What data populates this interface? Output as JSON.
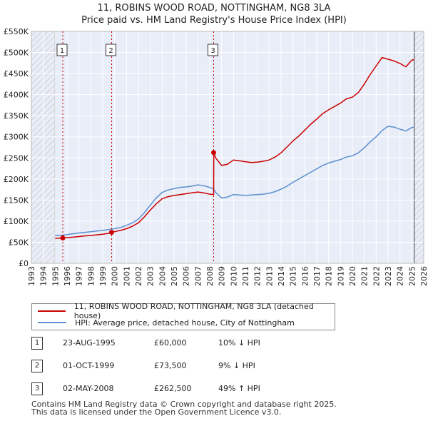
{
  "title_line1": "11, ROBINS WOOD ROAD, NOTTINGHAM, NG8 3LA",
  "title_line2": "Price paid vs. HM Land Registry's House Price Index (HPI)",
  "colors": {
    "price": "#cc0000",
    "hpi": "#5b8fd0",
    "shade": "#e8edf8",
    "hatch": "#c8c8c8",
    "grid": "#ffffff",
    "marker_line": "#cc0000"
  },
  "legend": {
    "price_label": "11, ROBINS WOOD ROAD, NOTTINGHAM, NG8 3LA (detached house)",
    "hpi_label": "HPI: Average price, detached house, City of Nottingham"
  },
  "transactions": [
    {
      "num": "1",
      "date": "23-AUG-1995",
      "price": "£60,000",
      "hpi": "10% ↓ HPI"
    },
    {
      "num": "2",
      "date": "01-OCT-1999",
      "price": "£73,500",
      "hpi": "9% ↓ HPI"
    },
    {
      "num": "3",
      "date": "02-MAY-2008",
      "price": "£262,500",
      "hpi": "49% ↑ HPI"
    }
  ],
  "footer_line1": "Contains HM Land Registry data © Crown copyright and database right 2025.",
  "footer_line2": "This data is licensed under the Open Government Licence v3.0.",
  "chart_data": {
    "type": "line",
    "title": "11, ROBINS WOOD ROAD, NOTTINGHAM, NG8 3LA",
    "subtitle": "Price paid vs. HM Land Registry's House Price Index (HPI)",
    "xlabel": "",
    "ylabel": "",
    "xlim": [
      1993,
      2026
    ],
    "ylim": [
      0,
      550000
    ],
    "y_ticks": [
      0,
      50000,
      100000,
      150000,
      200000,
      250000,
      300000,
      350000,
      400000,
      450000,
      500000,
      550000
    ],
    "y_tick_labels": [
      "£0",
      "£50K",
      "£100K",
      "£150K",
      "£200K",
      "£250K",
      "£300K",
      "£350K",
      "£400K",
      "£450K",
      "£500K",
      "£550K"
    ],
    "x_ticks": [
      1993,
      1994,
      1995,
      1996,
      1997,
      1998,
      1999,
      2000,
      2001,
      2002,
      2003,
      2004,
      2005,
      2006,
      2007,
      2008,
      2009,
      2010,
      2011,
      2012,
      2013,
      2014,
      2015,
      2016,
      2017,
      2018,
      2019,
      2020,
      2021,
      2022,
      2023,
      2024,
      2025,
      2026
    ],
    "data_start": 1995.0,
    "data_end": 2025.2,
    "series": [
      {
        "name": "HPI: Average price, detached house, City of Nottingham",
        "x": [
          1995.0,
          1995.5,
          1996.0,
          1996.5,
          1997.0,
          1997.5,
          1998.0,
          1998.5,
          1999.0,
          1999.5,
          2000.0,
          2000.5,
          2001.0,
          2001.5,
          2002.0,
          2002.5,
          2003.0,
          2003.5,
          2004.0,
          2004.5,
          2005.0,
          2005.5,
          2006.0,
          2006.5,
          2007.0,
          2007.5,
          2008.0,
          2008.33,
          2008.5,
          2009.0,
          2009.5,
          2010.0,
          2010.5,
          2011.0,
          2011.5,
          2012.0,
          2012.5,
          2013.0,
          2013.5,
          2014.0,
          2014.5,
          2015.0,
          2015.5,
          2016.0,
          2016.5,
          2017.0,
          2017.5,
          2018.0,
          2018.5,
          2019.0,
          2019.5,
          2020.0,
          2020.5,
          2021.0,
          2021.5,
          2022.0,
          2022.5,
          2023.0,
          2023.5,
          2024.0,
          2024.5,
          2025.0,
          2025.2
        ],
        "values": [
          66000,
          66500,
          68000,
          70000,
          72000,
          73500,
          75000,
          76500,
          78000,
          80000,
          82000,
          85000,
          90000,
          96000,
          105000,
          120000,
          138000,
          155000,
          168000,
          174000,
          177000,
          180000,
          181000,
          183000,
          186000,
          184000,
          180000,
          176000,
          168000,
          155000,
          157000,
          163000,
          162000,
          161000,
          162000,
          163000,
          164000,
          166000,
          170000,
          176000,
          183000,
          192000,
          200000,
          208000,
          216000,
          224000,
          232000,
          238000,
          242000,
          246000,
          252000,
          255000,
          262000,
          274000,
          288000,
          300000,
          315000,
          325000,
          323000,
          318000,
          314000,
          322000,
          323000
        ]
      },
      {
        "name": "11, ROBINS WOOD ROAD, NOTTINGHAM, NG8 3LA (detached house)",
        "x": [
          1995.0,
          1995.64,
          1996.0,
          1996.5,
          1997.0,
          1997.5,
          1998.0,
          1998.5,
          1999.0,
          1999.5,
          1999.75,
          2000.0,
          2000.5,
          2001.0,
          2001.5,
          2002.0,
          2002.5,
          2003.0,
          2003.5,
          2004.0,
          2004.5,
          2005.0,
          2005.5,
          2006.0,
          2006.5,
          2007.0,
          2007.5,
          2008.0,
          2008.33,
          2008.34,
          2008.5,
          2009.0,
          2009.5,
          2010.0,
          2010.5,
          2011.0,
          2011.5,
          2012.0,
          2012.5,
          2013.0,
          2013.5,
          2014.0,
          2014.5,
          2015.0,
          2015.5,
          2016.0,
          2016.5,
          2017.0,
          2017.5,
          2018.0,
          2018.5,
          2019.0,
          2019.5,
          2020.0,
          2020.5,
          2021.0,
          2021.5,
          2022.0,
          2022.5,
          2023.0,
          2023.5,
          2024.0,
          2024.5,
          2025.0,
          2025.2
        ],
        "values": [
          59000,
          60000,
          61000,
          62000,
          63500,
          65000,
          66000,
          67500,
          69000,
          71000,
          73500,
          75000,
          78000,
          82000,
          88000,
          96000,
          110000,
          126000,
          141000,
          153000,
          158000,
          161000,
          163000,
          165000,
          167000,
          169000,
          167000,
          164000,
          163000,
          262500,
          250000,
          232000,
          235000,
          245000,
          243000,
          241000,
          239000,
          240000,
          242000,
          245000,
          252000,
          262000,
          276000,
          290000,
          302000,
          316000,
          330000,
          342000,
          355000,
          364000,
          372000,
          380000,
          390000,
          394000,
          405000,
          425000,
          448000,
          468000,
          488000,
          484000,
          480000,
          474000,
          466000,
          482000,
          483000
        ]
      }
    ],
    "markers": [
      {
        "label": "1",
        "x": 1995.64,
        "value": 60000
      },
      {
        "label": "2",
        "x": 1999.75,
        "value": 73500
      },
      {
        "label": "3",
        "x": 2008.33,
        "value": 262500
      }
    ]
  }
}
